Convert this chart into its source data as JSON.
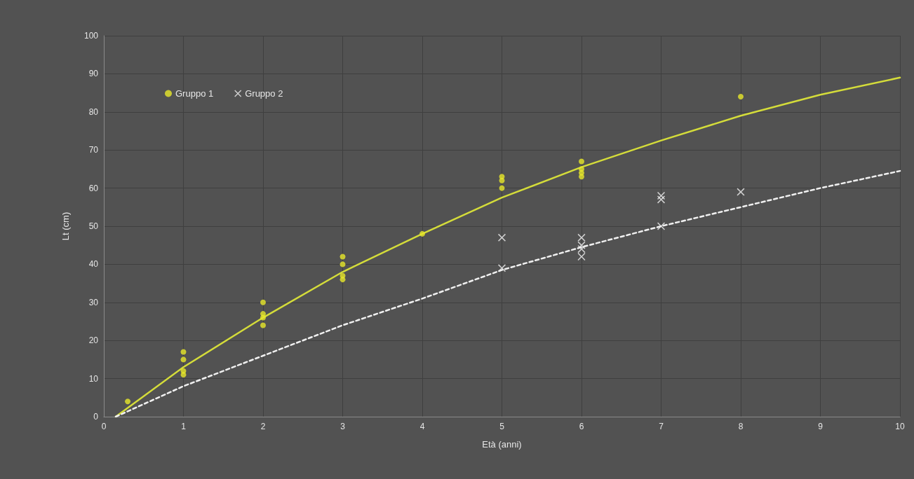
{
  "chart_data": {
    "type": "scatter",
    "xlabel": "Età (anni)",
    "ylabel": "Lt (cm)",
    "xlim": [
      0,
      10
    ],
    "xticks": [
      0,
      1,
      2,
      3,
      4,
      5,
      6,
      7,
      8,
      9,
      10
    ],
    "ylim": [
      0,
      100
    ],
    "yticks": [
      0,
      10,
      20,
      30,
      40,
      50,
      60,
      70,
      80,
      90,
      100
    ],
    "grid": true,
    "legend": "top left",
    "series": [
      {
        "name": "Gruppo 1",
        "marker": "circle",
        "color": "#e8e82a",
        "x": [
          0.3,
          1,
          1,
          1,
          1,
          2,
          2,
          2,
          2,
          3,
          3,
          3,
          3,
          4,
          5,
          5,
          5,
          6,
          6,
          6,
          6,
          8
        ],
        "values": [
          4,
          11,
          12,
          15,
          17,
          24,
          26,
          27,
          30,
          36,
          37,
          40,
          42,
          48,
          60,
          62,
          63,
          63,
          64,
          65,
          67,
          84
        ]
      },
      {
        "name": "Gruppo 2",
        "marker": "cross",
        "color": "#f0f0f0",
        "x": [
          5,
          5,
          6,
          6,
          6,
          6,
          7,
          7,
          7,
          8
        ],
        "values": [
          39,
          47,
          42,
          44,
          45,
          47,
          50,
          57,
          58,
          59
        ]
      },
      {
        "type": "line",
        "marker": "none",
        "line_style": "solid",
        "color": "#d4dc3a",
        "x": [
          0.15,
          1,
          2,
          3,
          4,
          5,
          6,
          7,
          8,
          9,
          10
        ],
        "values": [
          0,
          13,
          26,
          38,
          48,
          57.5,
          65.5,
          72.5,
          79,
          84.5,
          89
        ]
      },
      {
        "type": "line",
        "marker": "none",
        "line_style": "dashed",
        "color": "#f0f0f0",
        "x": [
          0.15,
          1,
          2,
          3,
          4,
          5,
          6,
          7,
          8,
          9,
          10
        ],
        "values": [
          0,
          8,
          16,
          24,
          31,
          38.5,
          44.5,
          50,
          55,
          60,
          64.5
        ]
      }
    ]
  }
}
